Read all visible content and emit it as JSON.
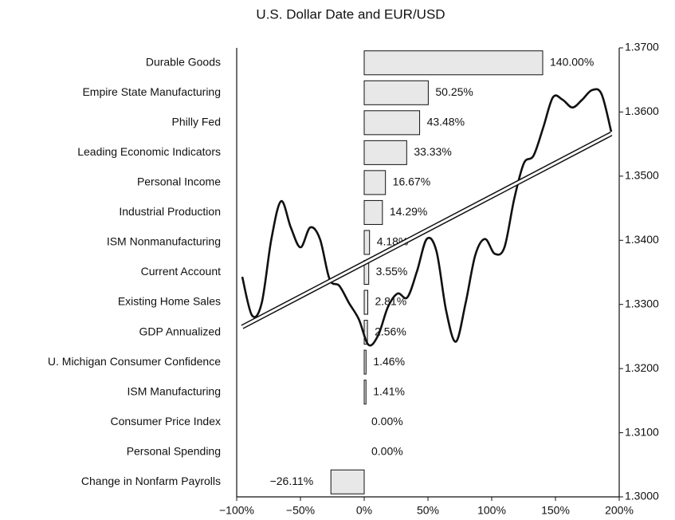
{
  "chart_data": {
    "type": "bar",
    "title": "U.S. Dollar Date and EUR/USD",
    "categories": [
      "Durable Goods",
      "Empire State Manufacturing",
      "Philly Fed",
      "Leading Economic Indicators",
      "Personal Income",
      "Industrial Production",
      "ISM Nonmanufacturing",
      "Current Account",
      "Existing Home Sales",
      "GDP Annualized",
      "U. Michigan Consumer Confidence",
      "ISM Manufacturing",
      "Consumer Price Index",
      "Personal Spending",
      "Change in Nonfarm Payrolls"
    ],
    "values": [
      140.0,
      50.25,
      43.48,
      33.33,
      16.67,
      14.29,
      4.18,
      3.55,
      2.81,
      2.56,
      1.46,
      1.41,
      0.0,
      0.0,
      -26.11
    ],
    "value_labels": [
      "140.00%",
      "50.25%",
      "43.48%",
      "33.33%",
      "16.67%",
      "14.29%",
      "4.18%",
      "3.55%",
      "2.81%",
      "2.56%",
      "1.46%",
      "1.41%",
      "0.00%",
      "0.00%",
      "−26.11%"
    ],
    "color": "#e8e8e8",
    "xlim": [
      -100,
      200
    ],
    "xticks": [
      {
        "value": -100,
        "label": "−100%"
      },
      {
        "value": -50,
        "label": "−50%"
      },
      {
        "value": 0,
        "label": "0%"
      },
      {
        "value": 50,
        "label": "50%"
      },
      {
        "value": 100,
        "label": "100%"
      },
      {
        "value": 150,
        "label": "150%"
      },
      {
        "value": 200,
        "label": "200%"
      }
    ],
    "y2lim": [
      1.3,
      1.37
    ],
    "y2ticks": [
      {
        "value": 1.3,
        "label": "1.3000"
      },
      {
        "value": 1.31,
        "label": "1.3100"
      },
      {
        "value": 1.32,
        "label": "1.3200"
      },
      {
        "value": 1.33,
        "label": "1.3300"
      },
      {
        "value": 1.34,
        "label": "1.3400"
      },
      {
        "value": 1.35,
        "label": "1.3500"
      },
      {
        "value": 1.36,
        "label": "1.3600"
      },
      {
        "value": 1.37,
        "label": "1.3700"
      }
    ],
    "line": {
      "axis": "y2",
      "color": "#111111",
      "values": [
        1.3343,
        1.3283,
        1.3302,
        1.3402,
        1.3461,
        1.342,
        1.3389,
        1.342,
        1.3402,
        1.3339,
        1.3329,
        1.3302,
        1.3277,
        1.3237,
        1.3252,
        1.3296,
        1.3317,
        1.3311,
        1.3352,
        1.3402,
        1.3383,
        1.329,
        1.3242,
        1.3302,
        1.3377,
        1.3402,
        1.3379,
        1.3389,
        1.3464,
        1.352,
        1.3532,
        1.3576,
        1.3623,
        1.3619,
        1.3607,
        1.3619,
        1.3634,
        1.3628,
        1.3569
      ]
    },
    "trend": {
      "axis": "y2",
      "values": [
        1.3265,
        1.3566
      ]
    }
  }
}
